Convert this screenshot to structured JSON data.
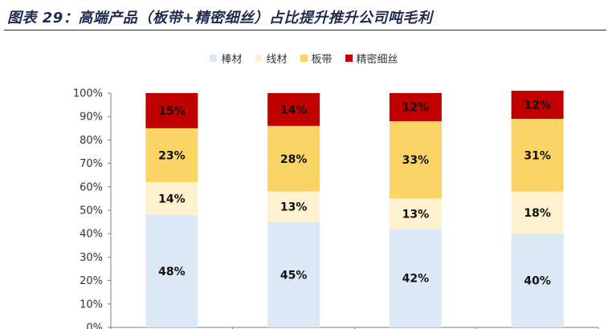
{
  "header": {
    "title": "图表 29：高端产品（板带+精密细丝）占比提升推升公司吨毛利"
  },
  "colors": {
    "title": "#1f2b4f",
    "series": [
      "#dde8f6",
      "#fdf1cf",
      "#fbd466",
      "#c00000"
    ]
  },
  "chart_data": {
    "type": "bar",
    "stacked": true,
    "categories": [
      "",
      "",
      "",
      ""
    ],
    "series": [
      {
        "name": "棒材",
        "values": [
          48,
          45,
          42,
          40
        ],
        "labels": [
          "48%",
          "45%",
          "42%",
          "40%"
        ]
      },
      {
        "name": "线材",
        "values": [
          14,
          13,
          13,
          18
        ],
        "labels": [
          "14%",
          "13%",
          "13%",
          "18%"
        ]
      },
      {
        "name": "板带",
        "values": [
          23,
          28,
          33,
          31
        ],
        "labels": [
          "23%",
          "28%",
          "33%",
          "31%"
        ]
      },
      {
        "name": "精密细丝",
        "values": [
          15,
          14,
          12,
          12
        ],
        "labels": [
          "15%",
          "14%",
          "12%",
          "12%"
        ]
      }
    ],
    "ylim": [
      0,
      100
    ],
    "yticks": [
      "0%",
      "10%",
      "20%",
      "30%",
      "40%",
      "50%",
      "60%",
      "70%",
      "80%",
      "90%",
      "100%"
    ],
    "grid": false,
    "legend_position": "top"
  }
}
